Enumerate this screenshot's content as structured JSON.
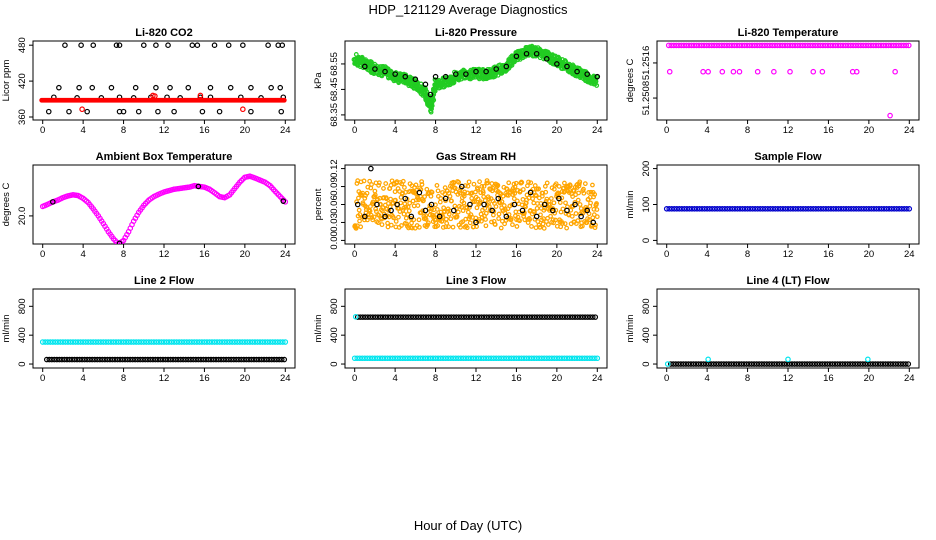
{
  "figure": {
    "title": "HDP_121129  Average Diagnostics",
    "xlabel": "Hour of Day (UTC)"
  },
  "colors": {
    "black": "#000000",
    "red": "#ff0000",
    "green": "#22cc22",
    "magenta": "#ff00ff",
    "orange": "#ffa500",
    "blue": "#0000cc",
    "cyan": "#00e5ee"
  },
  "chart_data": [
    {
      "id": "co2",
      "type": "scatter",
      "title": "Li-820 CO2",
      "ylabel": "Licor ppm",
      "xticks": [
        0,
        4,
        8,
        12,
        16,
        20,
        24
      ],
      "xtick_labels": [
        "0",
        "4",
        "8",
        "12",
        "16",
        "20",
        "24"
      ],
      "yticks": [
        360,
        420,
        480
      ],
      "ytick_labels": [
        "360",
        "420",
        "480"
      ],
      "xlim": [
        -0.96,
        24.96
      ],
      "ylim": [
        355,
        487
      ],
      "series": [
        {
          "name": "black-high",
          "color": "black",
          "pch": "o",
          "x": [
            2.2,
            3.8,
            5,
            7.3,
            7.6,
            10,
            11.2,
            12.4,
            14.8,
            15.3,
            17,
            18.4,
            19.8,
            22.3,
            23.3,
            23.7
          ],
          "y": [
            480,
            480,
            480,
            480,
            480,
            480,
            480,
            480,
            480,
            480,
            480,
            480,
            480,
            480,
            480,
            480
          ]
        },
        {
          "name": "black-mid",
          "color": "black",
          "pch": "o",
          "x": [
            1.6,
            3.6,
            4.9,
            6.8,
            9.2,
            11.2,
            12.6,
            14.4,
            16.6,
            18.6,
            20.6,
            22.6,
            23.5
          ],
          "y": [
            409,
            409,
            409,
            409,
            409,
            409,
            409,
            409,
            409,
            409,
            409,
            409,
            409
          ]
        },
        {
          "name": "black-near",
          "color": "black",
          "pch": "o",
          "x": [
            1.1,
            3.4,
            5.8,
            7.6,
            9,
            10.7,
            12.3,
            13.6,
            15.6,
            16.6,
            19.6,
            21.6,
            23.8
          ],
          "y": [
            393,
            392,
            392,
            393,
            392,
            393,
            393,
            392,
            393,
            393,
            393,
            392,
            393
          ]
        },
        {
          "name": "black-low",
          "color": "black",
          "pch": "o",
          "x": [
            0.6,
            2.6,
            4.4,
            7.6,
            8,
            9.5,
            11.4,
            13,
            15.8,
            17.5,
            20.6,
            23.6
          ],
          "y": [
            369,
            369,
            369,
            369,
            369,
            369,
            369,
            369,
            369,
            369,
            369,
            369
          ]
        },
        {
          "name": "red-band",
          "color": "red",
          "pch": "o",
          "band": [
            -0.1,
            23.9,
            388,
            388
          ],
          "x": [
            3.9,
            10.9,
            19.8,
            11.1,
            15.6
          ],
          "y": [
            373,
            396,
            373,
            395,
            396
          ]
        }
      ]
    },
    {
      "id": "pressure",
      "type": "scatter",
      "title": "Li-820 Pressure",
      "ylabel": "kPa",
      "xticks": [
        0,
        4,
        8,
        12,
        16,
        20,
        24
      ],
      "xtick_labels": [
        "0",
        "4",
        "8",
        "12",
        "16",
        "20",
        "24"
      ],
      "yticks": [
        68.35,
        68.45,
        68.55
      ],
      "ytick_labels": [
        "68.35",
        "68.45",
        "68.55"
      ],
      "xlim": [
        -0.96,
        24.96
      ],
      "ylim": [
        68.33,
        68.64
      ],
      "series": [
        {
          "name": "green-band",
          "color": "green",
          "pch": "o",
          "x": [
            0,
            1,
            2,
            3,
            4,
            5,
            6,
            7,
            7.5,
            8,
            9,
            10,
            11,
            12,
            13,
            14,
            15,
            16,
            17,
            18,
            19,
            20,
            21,
            22,
            23,
            24
          ],
          "y": [
            68.57,
            68.55,
            68.53,
            68.52,
            68.5,
            68.49,
            68.47,
            68.44,
            68.38,
            68.47,
            68.48,
            68.5,
            68.51,
            68.51,
            68.51,
            68.52,
            68.54,
            68.58,
            68.6,
            68.6,
            68.58,
            68.56,
            68.54,
            68.52,
            68.5,
            68.48
          ]
        },
        {
          "name": "black-mean",
          "color": "black",
          "pch": "o",
          "x": [
            1,
            2,
            3,
            4,
            5,
            6,
            7,
            7.5,
            8,
            9,
            10,
            11,
            12,
            13,
            14,
            15,
            16,
            17,
            18,
            19,
            20,
            21,
            22,
            23,
            24
          ],
          "y": [
            68.54,
            68.53,
            68.52,
            68.51,
            68.5,
            68.49,
            68.47,
            68.43,
            68.5,
            68.5,
            68.51,
            68.51,
            68.52,
            68.52,
            68.53,
            68.54,
            68.58,
            68.59,
            68.59,
            68.57,
            68.55,
            68.54,
            68.52,
            68.51,
            68.5
          ]
        }
      ]
    },
    {
      "id": "temp820",
      "type": "scatter",
      "title": "Li-820 Temperature",
      "ylabel": "degrees C",
      "xticks": [
        0,
        4,
        8,
        12,
        16,
        20,
        24
      ],
      "xtick_labels": [
        "0",
        "4",
        "8",
        "12",
        "16",
        "20",
        "24"
      ],
      "yticks": [
        51.2508,
        51.2516
      ],
      "ytick_labels": [
        "51.2508",
        "51.2516"
      ],
      "xlim": [
        -0.96,
        24.96
      ],
      "ylim": [
        51.2503,
        51.2521
      ],
      "series": [
        {
          "name": "top",
          "color": "magenta",
          "pch": "o",
          "xs_range": [
            0.2,
            24
          ],
          "y": 51.252
        },
        {
          "name": "mid",
          "color": "magenta",
          "pch": "o",
          "x": [
            0.3,
            3.6,
            4.1,
            5.5,
            6.6,
            7.2,
            9,
            10.6,
            12.2,
            14.5,
            15.4,
            18.4,
            18.8,
            22.6
          ],
          "y": [
            51.2514,
            51.2514,
            51.2514,
            51.2514,
            51.2514,
            51.2514,
            51.2514,
            51.2514,
            51.2514,
            51.2514,
            51.2514,
            51.2514,
            51.2514,
            51.2514
          ]
        },
        {
          "name": "low",
          "color": "magenta",
          "pch": "o",
          "x": [
            22.1
          ],
          "y": [
            51.2504
          ]
        }
      ]
    },
    {
      "id": "boxtemp",
      "type": "scatter",
      "title": "Ambient Box Temperature",
      "ylabel": "degrees C",
      "xticks": [
        0,
        4,
        8,
        12,
        16,
        20,
        24
      ],
      "xtick_labels": [
        "0",
        "4",
        "8",
        "12",
        "16",
        "20",
        "24"
      ],
      "yticks": [
        20
      ],
      "ytick_labels": [
        "20.0"
      ],
      "xlim": [
        -0.96,
        24.96
      ],
      "ylim": [
        19.2,
        21.45
      ],
      "series": [
        {
          "name": "box-temp",
          "color": "magenta",
          "pch": "o",
          "x": [
            0,
            0.5,
            1,
            1.5,
            2,
            2.5,
            3,
            3.5,
            4,
            4.5,
            5,
            5.5,
            6,
            6.5,
            7,
            7.5,
            8,
            8.5,
            9,
            9.5,
            10,
            10.5,
            11,
            11.5,
            12,
            12.5,
            13,
            13.5,
            14,
            14.5,
            15,
            15.5,
            16,
            16.5,
            17,
            17.5,
            18,
            18.5,
            19,
            19.5,
            20,
            20.5,
            21,
            21.5,
            22,
            22.5,
            23,
            23.5,
            24
          ],
          "y": [
            20.27,
            20.33,
            20.4,
            20.45,
            20.52,
            20.57,
            20.6,
            20.58,
            20.5,
            20.38,
            20.2,
            20.0,
            19.78,
            19.55,
            19.35,
            19.2,
            19.3,
            19.55,
            19.85,
            20.1,
            20.3,
            20.45,
            20.55,
            20.62,
            20.68,
            20.72,
            20.76,
            20.78,
            20.8,
            20.82,
            20.86,
            20.84,
            20.82,
            20.76,
            20.66,
            20.55,
            20.52,
            20.6,
            20.78,
            20.96,
            21.1,
            21.13,
            21.08,
            21.02,
            20.96,
            20.86,
            20.7,
            20.55,
            20.4
          ]
        }
      ]
    },
    {
      "id": "rh",
      "type": "scatter",
      "title": "Gas Stream RH",
      "ylabel": "percent",
      "xticks": [
        0,
        4,
        8,
        12,
        16,
        20,
        24
      ],
      "xtick_labels": [
        "0",
        "4",
        "8",
        "12",
        "16",
        "20",
        "24"
      ],
      "yticks": [
        0,
        0.03,
        0.06,
        0.09,
        0.12
      ],
      "ytick_labels": [
        "0.00",
        "0.03",
        "0.06",
        "0.09",
        "0.12"
      ],
      "xlim": [
        -0.96,
        24.96
      ],
      "ylim": [
        -0.006,
        0.126
      ],
      "series": [
        {
          "name": "rh-cloud",
          "color": "orange",
          "pch": "o",
          "band": [
            0,
            24,
            0.02,
            0.1
          ]
        },
        {
          "name": "rh-mean",
          "color": "black",
          "pch": "o",
          "x": [
            0.3,
            1,
            1.6,
            2.2,
            3,
            3.6,
            4.2,
            5,
            5.6,
            6.4,
            7,
            7.6,
            8.4,
            9,
            9.8,
            10.6,
            11.4,
            12,
            12.8,
            13.6,
            14.2,
            15,
            15.8,
            16.6,
            17.4,
            18,
            18.8,
            19.6,
            20.2,
            21,
            21.8,
            22.4,
            23,
            23.6
          ],
          "y": [
            0.06,
            0.04,
            0.12,
            0.06,
            0.04,
            0.05,
            0.06,
            0.07,
            0.04,
            0.08,
            0.05,
            0.06,
            0.04,
            0.07,
            0.05,
            0.09,
            0.06,
            0.03,
            0.06,
            0.05,
            0.07,
            0.04,
            0.06,
            0.05,
            0.08,
            0.04,
            0.06,
            0.05,
            0.07,
            0.05,
            0.06,
            0.04,
            0.05,
            0.03
          ]
        }
      ]
    },
    {
      "id": "sampleflow",
      "type": "scatter",
      "title": "Sample Flow",
      "ylabel": "ml/min",
      "xticks": [
        0,
        4,
        8,
        12,
        16,
        20,
        24
      ],
      "xtick_labels": [
        "0",
        "4",
        "8",
        "12",
        "16",
        "20",
        "24"
      ],
      "yticks": [
        0,
        100,
        200
      ],
      "ytick_labels": [
        "0",
        "100",
        "200"
      ],
      "xlim": [
        -0.96,
        24.96
      ],
      "ylim": [
        -10,
        210
      ],
      "series": [
        {
          "name": "flow",
          "color": "blue",
          "pch": "o",
          "xs_range": [
            0,
            24
          ],
          "y": 88
        }
      ]
    },
    {
      "id": "line2",
      "type": "scatter",
      "title": "Line 2 Flow",
      "ylabel": "ml/min",
      "xticks": [
        0,
        4,
        8,
        12,
        16,
        20,
        24
      ],
      "xtick_labels": [
        "0",
        "4",
        "8",
        "12",
        "16",
        "20",
        "24"
      ],
      "yticks": [
        0,
        400,
        800
      ],
      "ytick_labels": [
        "0",
        "400",
        "800"
      ],
      "xlim": [
        -0.96,
        24.96
      ],
      "ylim": [
        -55,
        1040
      ],
      "series": [
        {
          "name": "cyan",
          "color": "cyan",
          "pch": "o",
          "xs_range": [
            0,
            24
          ],
          "y": 305
        },
        {
          "name": "black",
          "color": "black",
          "pch": "o",
          "xs_range": [
            0.4,
            24
          ],
          "y": 62
        }
      ]
    },
    {
      "id": "line3",
      "type": "scatter",
      "title": "Line 3 Flow",
      "ylabel": "ml/min",
      "xticks": [
        0,
        4,
        8,
        12,
        16,
        20,
        24
      ],
      "xtick_labels": [
        "0",
        "4",
        "8",
        "12",
        "16",
        "20",
        "24"
      ],
      "yticks": [
        0,
        400,
        800
      ],
      "ytick_labels": [
        "0",
        "400",
        "800"
      ],
      "xlim": [
        -0.96,
        24.96
      ],
      "ylim": [
        -55,
        1040
      ],
      "series": [
        {
          "name": "black",
          "color": "black",
          "pch": "o",
          "xs_range": [
            0.3,
            24
          ],
          "y": 650
        },
        {
          "name": "cyan-top",
          "color": "cyan",
          "pch": "o",
          "x": [
            0.1
          ],
          "y": [
            655
          ]
        },
        {
          "name": "cyan-low",
          "color": "cyan",
          "pch": "o",
          "xs_range": [
            0,
            24
          ],
          "y": 80
        }
      ]
    },
    {
      "id": "line4",
      "type": "scatter",
      "title": "Line 4 (LT) Flow",
      "ylabel": "ml/min",
      "xticks": [
        0,
        4,
        8,
        12,
        16,
        20,
        24
      ],
      "xtick_labels": [
        "0",
        "4",
        "8",
        "12",
        "16",
        "20",
        "24"
      ],
      "yticks": [
        0,
        400,
        800
      ],
      "ytick_labels": [
        "0",
        "400",
        "800"
      ],
      "xlim": [
        -0.96,
        24.96
      ],
      "ylim": [
        -55,
        1040
      ],
      "series": [
        {
          "name": "black",
          "color": "black",
          "pch": "o",
          "xs_range": [
            0.4,
            24
          ],
          "y": 0
        },
        {
          "name": "cyan",
          "color": "cyan",
          "pch": "o",
          "x": [
            0.1,
            4.1,
            12.0,
            19.9
          ],
          "y": [
            0,
            65,
            65,
            65
          ]
        }
      ]
    }
  ]
}
